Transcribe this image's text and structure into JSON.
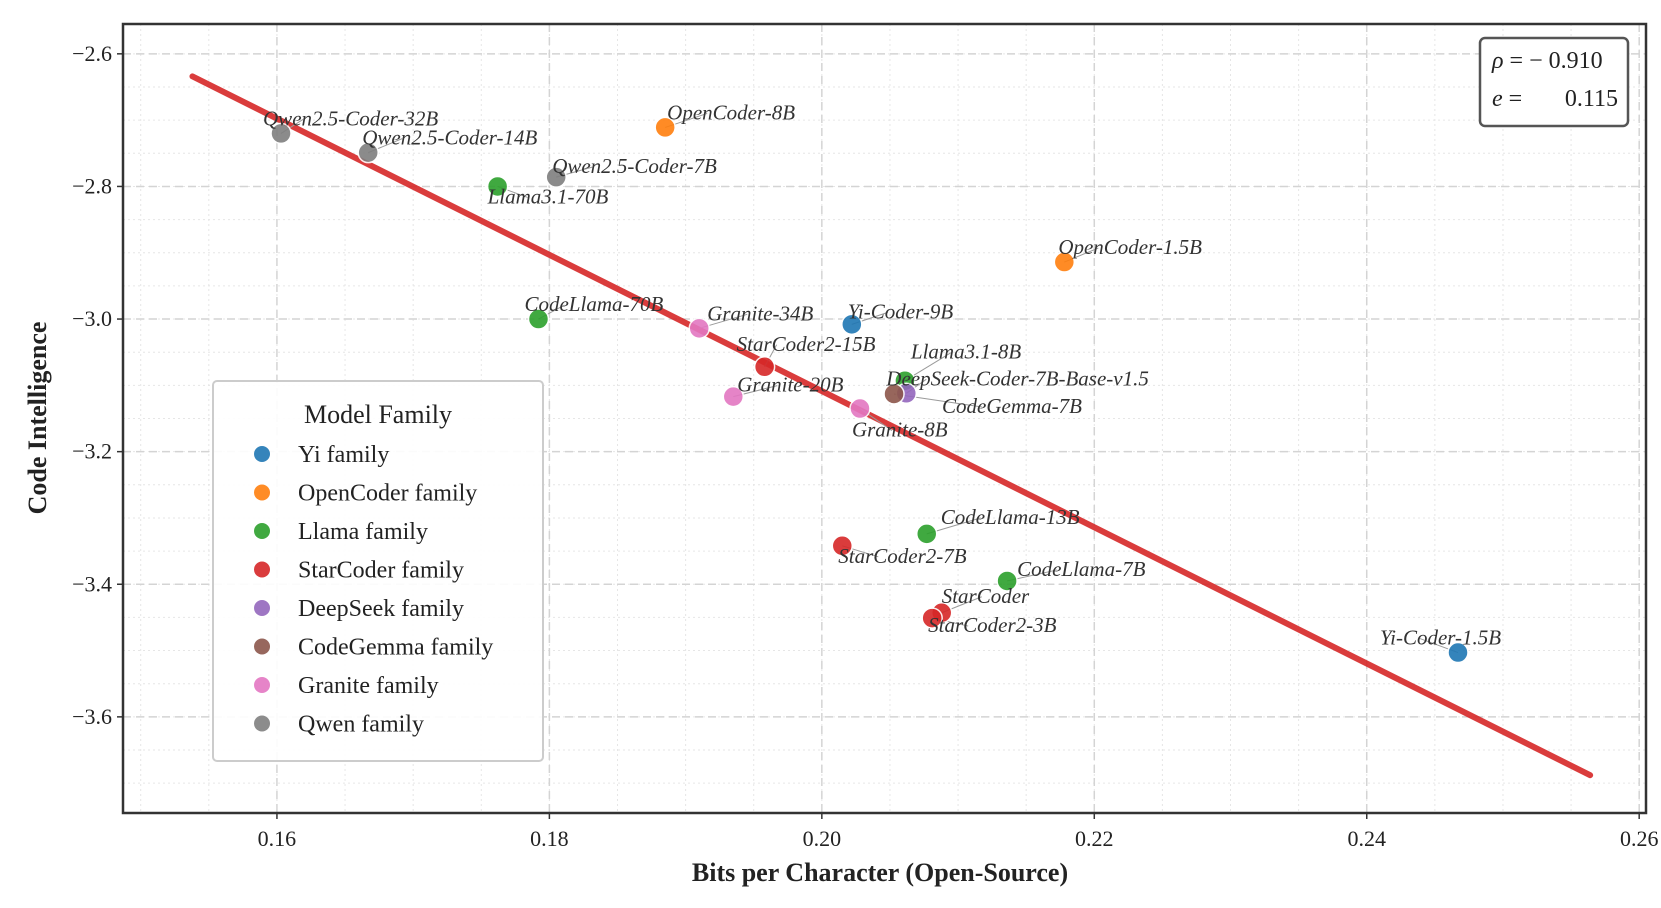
{
  "chart_data": {
    "type": "scatter",
    "title": "",
    "xlabel": "Bits per Character (Open-Source)",
    "ylabel": "Code Intelligence",
    "xlim": [
      0.1487,
      0.2605
    ],
    "ylim": [
      -3.745,
      -2.555
    ],
    "xticks": [
      0.16,
      0.18,
      0.2,
      0.22,
      0.24,
      0.26
    ],
    "xtick_labels": [
      "0.16",
      "0.18",
      "0.20",
      "0.22",
      "0.24",
      "0.26"
    ],
    "yticks": [
      -2.6,
      -2.8,
      -3.0,
      -3.2,
      -3.4,
      -3.6
    ],
    "ytick_labels": [
      "−2.6",
      "−2.8",
      "−3.0",
      "−3.2",
      "−3.4",
      "−3.6"
    ],
    "grid": true,
    "legend": {
      "title": "Model Family",
      "placement": "center-left",
      "entries": [
        {
          "name": "Yi family",
          "color": "#1f77b4"
        },
        {
          "name": "OpenCoder family",
          "color": "#ff7f0e"
        },
        {
          "name": "Llama family",
          "color": "#2ca02c"
        },
        {
          "name": "StarCoder family",
          "color": "#d62728"
        },
        {
          "name": "DeepSeek family",
          "color": "#9467bd"
        },
        {
          "name": "CodeGemma family",
          "color": "#8c564b"
        },
        {
          "name": "Granite family",
          "color": "#e377c2"
        },
        {
          "name": "Qwen family",
          "color": "#7f7f7f"
        }
      ]
    },
    "fit_line": {
      "x": [
        0.1538,
        0.2564
      ],
      "y": [
        -2.634,
        -3.688
      ],
      "color": "#d62728"
    },
    "stats": {
      "rho_symbol": "ρ",
      "rho_value": "− 0.910",
      "e_symbol": "e",
      "e_value": "0.115"
    },
    "points": [
      {
        "label": "Qwen2.5-Coder-32B",
        "family": "Qwen",
        "x": 0.1603,
        "y": -2.72,
        "color": "#7f7f7f",
        "dx": -18,
        "dy": -8
      },
      {
        "label": "Qwen2.5-Coder-14B",
        "family": "Qwen",
        "x": 0.1667,
        "y": -2.749,
        "color": "#7f7f7f",
        "dx": -6,
        "dy": -8
      },
      {
        "label": "OpenCoder-8B",
        "family": "OpenCoder",
        "x": 0.1885,
        "y": -2.711,
        "color": "#ff7f0e",
        "dx": 2,
        "dy": -8
      },
      {
        "label": "Qwen2.5-Coder-7B",
        "family": "Qwen",
        "x": 0.1805,
        "y": -2.786,
        "color": "#7f7f7f",
        "dx": -4,
        "dy": -4
      },
      {
        "label": "Llama3.1-70B",
        "family": "Llama",
        "x": 0.1762,
        "y": -2.8,
        "color": "#2ca02c",
        "dx": -10,
        "dy": 17
      },
      {
        "label": "OpenCoder-1.5B",
        "family": "OpenCoder",
        "x": 0.2178,
        "y": -2.914,
        "color": "#ff7f0e",
        "dx": -6,
        "dy": -8
      },
      {
        "label": "CodeLlama-70B",
        "family": "Llama",
        "x": 0.1792,
        "y": -3.0,
        "color": "#2ca02c",
        "dx": -14,
        "dy": -8
      },
      {
        "label": "Granite-34B",
        "family": "Granite",
        "x": 0.191,
        "y": -3.014,
        "color": "#e377c2",
        "dx": 8,
        "dy": -8
      },
      {
        "label": "Yi-Coder-9B",
        "family": "Yi",
        "x": 0.2022,
        "y": -3.008,
        "color": "#1f77b4",
        "dx": -4,
        "dy": -6
      },
      {
        "label": "StarCoder2-15B",
        "family": "StarCoder",
        "x": 0.1958,
        "y": -3.072,
        "color": "#d62728",
        "dx": -28,
        "dy": -16
      },
      {
        "label": "Llama3.1-8B",
        "family": "Llama",
        "x": 0.2061,
        "y": -3.093,
        "color": "#2ca02c",
        "dx": 6,
        "dy": -22
      },
      {
        "label": "DeepSeek-Coder-7B-Base-v1.5",
        "family": "DeepSeek",
        "x": 0.2062,
        "y": -3.112,
        "color": "#9467bd",
        "dx": -20,
        "dy": -8
      },
      {
        "label": "CodeGemma-7B",
        "family": "CodeGemma",
        "x": 0.2053,
        "y": -3.113,
        "color": "#8c564b",
        "dx": 48,
        "dy": 19
      },
      {
        "label": "Granite-20B",
        "family": "Granite",
        "x": 0.1935,
        "y": -3.117,
        "color": "#e377c2",
        "dx": 4,
        "dy": -5
      },
      {
        "label": "Granite-8B",
        "family": "Granite",
        "x": 0.2028,
        "y": -3.135,
        "color": "#e377c2",
        "dx": -8,
        "dy": 28
      },
      {
        "label": "CodeLlama-13B",
        "family": "Llama",
        "x": 0.2077,
        "y": -3.324,
        "color": "#2ca02c",
        "dx": 14,
        "dy": -10
      },
      {
        "label": "StarCoder2-7B",
        "family": "StarCoder",
        "x": 0.2015,
        "y": -3.342,
        "color": "#d62728",
        "dx": -4,
        "dy": 17
      },
      {
        "label": "CodeLlama-7B",
        "family": "Llama",
        "x": 0.2136,
        "y": -3.395,
        "color": "#2ca02c",
        "dx": 10,
        "dy": -5
      },
      {
        "label": "StarCoder",
        "family": "StarCoder",
        "x": 0.2088,
        "y": -3.443,
        "color": "#d62728",
        "dx": 0,
        "dy": -10
      },
      {
        "label": "StarCoder2-3B",
        "family": "StarCoder",
        "x": 0.2081,
        "y": -3.451,
        "color": "#d62728",
        "dx": -4,
        "dy": 14
      },
      {
        "label": "Yi-Coder-1.5B",
        "family": "Yi",
        "x": 0.2467,
        "y": -3.503,
        "color": "#1f77b4",
        "dx": -78,
        "dy": -8
      }
    ]
  }
}
